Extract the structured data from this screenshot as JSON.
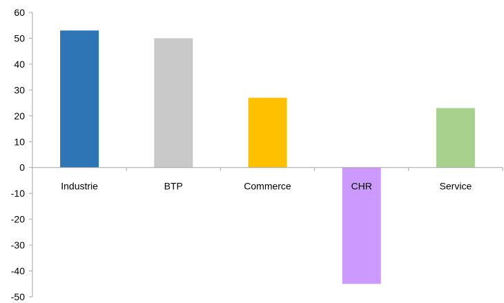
{
  "chart_data": {
    "type": "bar",
    "categories": [
      "Industrie",
      "BTP",
      "Commerce",
      "CHR",
      "Service"
    ],
    "values": [
      53,
      50,
      27,
      -45,
      23
    ],
    "colors": [
      "#2e75b6",
      "#c9c9c9",
      "#ffc000",
      "#cc99ff",
      "#a9d18e"
    ],
    "ylim": [
      -50,
      60
    ],
    "yticks": [
      -50,
      -40,
      -30,
      -20,
      -10,
      0,
      10,
      20,
      30,
      40,
      50,
      60
    ],
    "yticklabels": [
      "-50",
      "-40",
      "-30",
      "-20",
      "-10",
      "0",
      "10",
      "20",
      "30",
      "40",
      "50",
      "60"
    ],
    "title": "",
    "xlabel": "",
    "ylabel": "",
    "grid": false,
    "legend": "none",
    "axis_color": "#a6a6a6"
  }
}
